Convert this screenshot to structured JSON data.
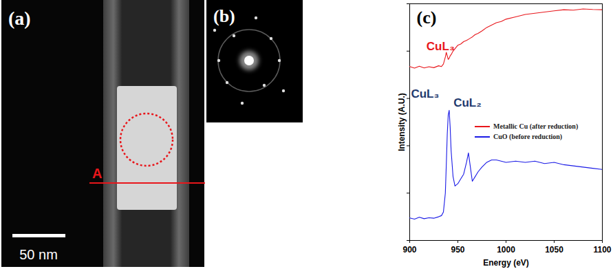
{
  "figure": {
    "panels": [
      {
        "label": "(a)",
        "line_label": "A",
        "scale_bar": "50 nm"
      },
      {
        "label": "(b)"
      }
    ]
  },
  "chart_data": {
    "type": "line",
    "title": "(c)",
    "x_label": "Energy (eV)",
    "y_label": "Intensity (A.U.)",
    "x": [
      900,
      905,
      910,
      915,
      920,
      925,
      930,
      933,
      935,
      937,
      938,
      939,
      940,
      941,
      942,
      943,
      945,
      947,
      950,
      953,
      956,
      959,
      961,
      963,
      965,
      968,
      971,
      975,
      980,
      985,
      990,
      995,
      1000,
      1010,
      1020,
      1030,
      1040,
      1050,
      1060,
      1070,
      1080,
      1090,
      1100
    ],
    "series": [
      {
        "name": "Metallic Cu (after reduction)",
        "color": "#e8161b",
        "values": [
          73.5,
          72.8,
          73.6,
          72.9,
          73.4,
          73.0,
          73.8,
          73.5,
          74.5,
          77.5,
          79.5,
          78,
          76.5,
          77,
          78,
          78.5,
          80,
          81,
          82.5,
          83,
          84,
          84.5,
          85,
          85.5,
          86,
          87,
          87.5,
          88.5,
          90,
          91,
          92,
          92.5,
          93.5,
          94.5,
          95.5,
          96,
          96.5,
          97,
          97.5,
          97.3,
          97.8,
          97.6,
          97.5
        ]
      },
      {
        "name": "CuO (before reduction)",
        "color": "#1a1ae6",
        "values": [
          9.5,
          9,
          9.8,
          9.2,
          9.6,
          9.4,
          10,
          10.5,
          12,
          20,
          32,
          45,
          53,
          55,
          48,
          38,
          27,
          23,
          24,
          26,
          28,
          33,
          37,
          31,
          25,
          27,
          29,
          31,
          33,
          34,
          34,
          33.5,
          33,
          33.5,
          33,
          33.5,
          32.5,
          33,
          32,
          31.5,
          31,
          30.5,
          30
        ]
      }
    ],
    "xlim": [
      900,
      1100
    ],
    "xticks": [
      900,
      950,
      1000,
      1050,
      1100
    ],
    "ylim": [
      0,
      100
    ],
    "yticks": [
      0,
      20,
      40,
      60,
      80,
      100
    ],
    "tick_labels": "x",
    "legend": "center",
    "annotations": [
      {
        "text": "CuL₃",
        "x": 932,
        "y": 82,
        "color": "#e8161b"
      },
      {
        "text": "CuL₃",
        "x": 916,
        "y": 62,
        "color": "#1f3a6e"
      },
      {
        "text": "CuL₂",
        "x": 960,
        "y": 58,
        "color": "#1f3a6e"
      }
    ]
  }
}
